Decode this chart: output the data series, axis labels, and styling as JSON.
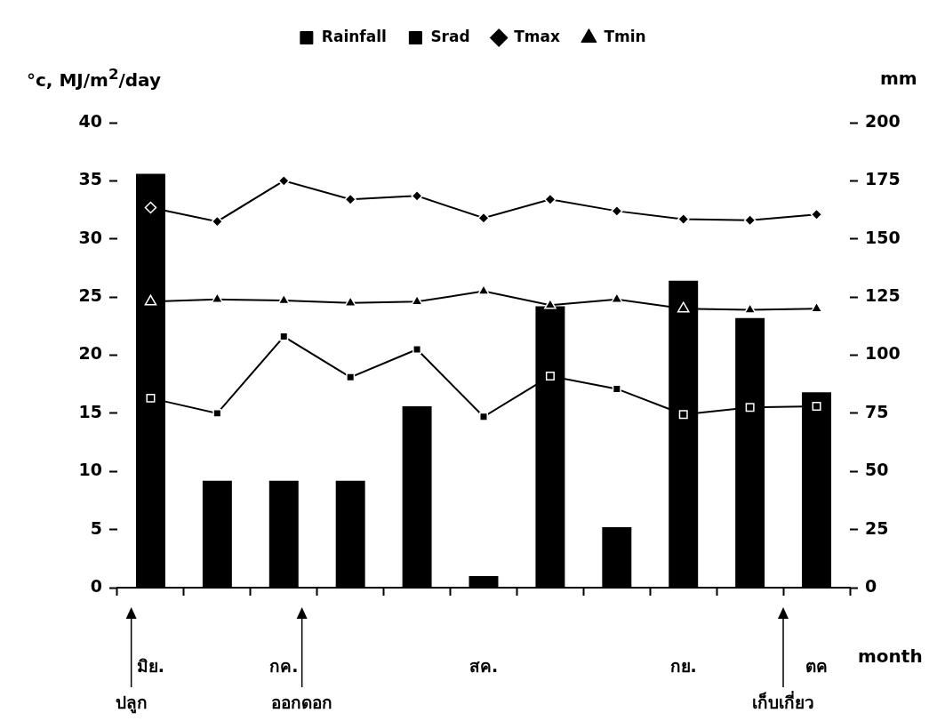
{
  "chart_data": {
    "type": "bar",
    "xlabel": "month",
    "ylabel": "°c, MJ/m$^{2}$/day",
    "y2label": "mm",
    "categories": [
      "มิย.",
      null,
      "กค.",
      null,
      null,
      "สค.",
      null,
      null,
      "กย.",
      null,
      "ตค"
    ],
    "series": [
      {
        "name": "Rainfall",
        "axis": "y2",
        "color": "#000000",
        "values": [
          178,
          46,
          46,
          46,
          78,
          5,
          121,
          26,
          132,
          116,
          84
        ]
      },
      {
        "name": "Srad",
        "type": "line",
        "marker": "square",
        "color": "#000000",
        "values": [
          16.3,
          15.0,
          21.6,
          18.1,
          20.5,
          14.7,
          18.2,
          17.1,
          14.9,
          15.5,
          15.6
        ]
      },
      {
        "name": "Tmax",
        "type": "line",
        "marker": "diamond",
        "color": "#000000",
        "values": [
          32.7,
          31.5,
          35.0,
          33.4,
          33.7,
          31.8,
          33.4,
          32.4,
          31.7,
          31.6,
          32.1
        ]
      },
      {
        "name": "Tmin",
        "type": "line",
        "marker": "triangle",
        "color": "#000000",
        "values": [
          24.6,
          24.8,
          24.7,
          24.5,
          24.6,
          25.5,
          24.3,
          24.8,
          24.0,
          23.9,
          24.0
        ]
      }
    ],
    "ylim": [
      0,
      40
    ],
    "yticks": [
      0,
      5,
      10,
      15,
      20,
      25,
      30,
      35,
      40
    ],
    "y2lim": [
      0,
      200
    ],
    "y2ticks": [
      0,
      25,
      50,
      75,
      100,
      125,
      150,
      175,
      200
    ],
    "grid": false,
    "legend": "top",
    "annotations": [
      "ปลูก",
      "ออกดอก",
      "เก็บเกี่ยว"
    ]
  }
}
